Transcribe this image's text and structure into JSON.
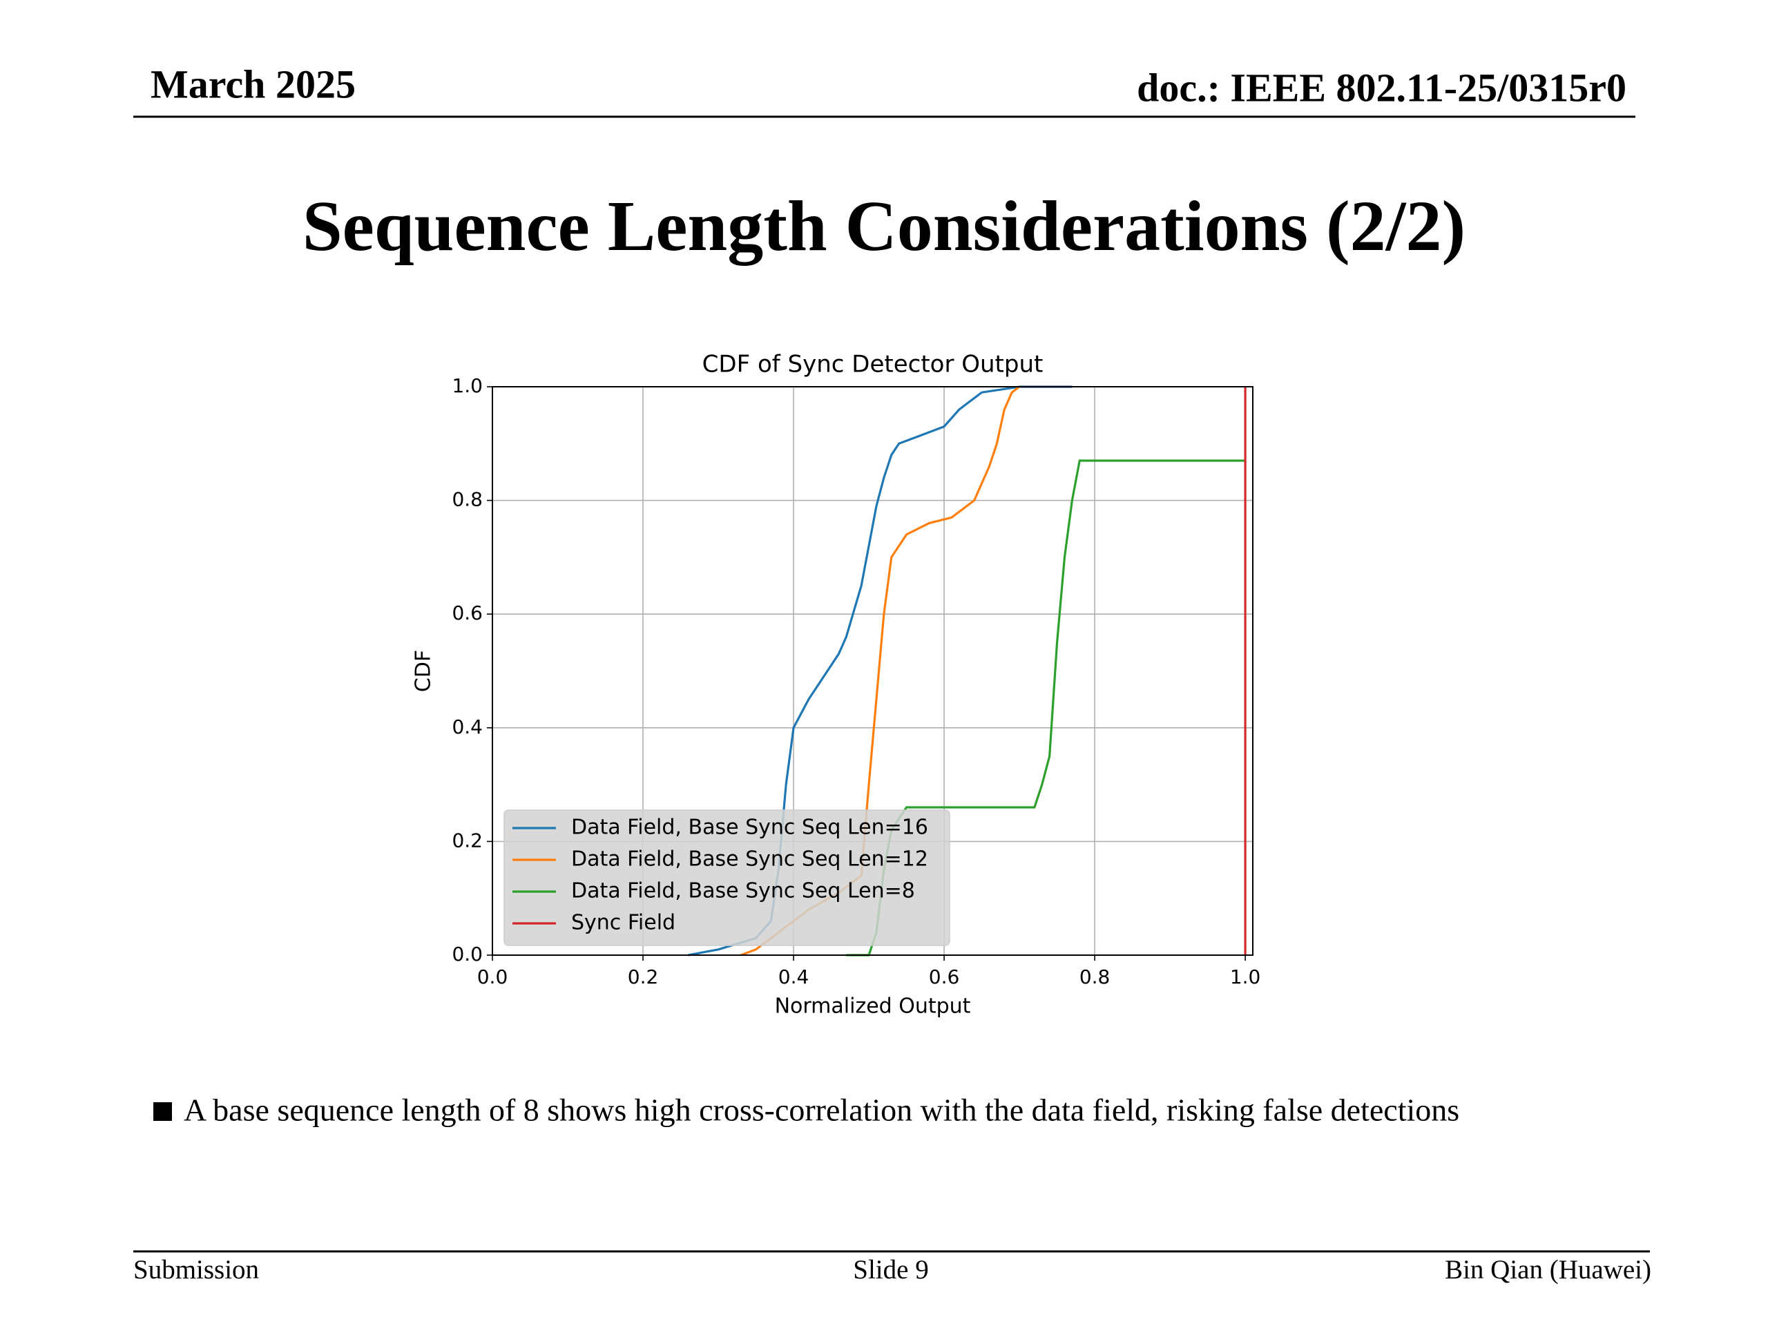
{
  "header": {
    "date": "March 2025",
    "doc": "doc.: IEEE 802.11-25/0315r0"
  },
  "slide_title": "Sequence Length Considerations (2/2)",
  "chart_data": {
    "type": "line",
    "title": "CDF of Sync Detector Output",
    "x_label": "Normalized Output",
    "y_label": "CDF",
    "xlim": [
      0,
      1.01
    ],
    "ylim": [
      0,
      1
    ],
    "xticks": [
      {
        "value": 0,
        "label": "0.0"
      },
      0.2,
      0.4,
      0.6,
      0.8,
      {
        "value": 1,
        "label": "1.0"
      }
    ],
    "yticks": [
      {
        "value": 0,
        "label": "0.0"
      },
      0.2,
      0.4,
      0.6,
      0.8,
      {
        "value": 1,
        "label": "1.0"
      }
    ],
    "grid": true,
    "legend": "lower left",
    "series": [
      {
        "name": "Data Field, Base Sync Seq Len=16",
        "color": "#1f77b4",
        "x": [
          0.26,
          0.3,
          0.35,
          0.37,
          0.38,
          0.39,
          0.4,
          0.42,
          0.44,
          0.46,
          0.47,
          0.49,
          0.5,
          0.51,
          0.52,
          0.53,
          0.54,
          0.56,
          0.58,
          0.6,
          0.62,
          0.65,
          0.7,
          0.77
        ],
        "values": [
          0,
          0.01,
          0.03,
          0.06,
          0.15,
          0.3,
          0.4,
          0.45,
          0.49,
          0.53,
          0.56,
          0.65,
          0.72,
          0.79,
          0.84,
          0.88,
          0.9,
          0.91,
          0.92,
          0.93,
          0.96,
          0.99,
          1.0,
          1.0
        ]
      },
      {
        "name": "Data Field, Base Sync Seq Len=12",
        "color": "#ff7f0e",
        "x": [
          0.33,
          0.35,
          0.38,
          0.42,
          0.46,
          0.49,
          0.5,
          0.51,
          0.52,
          0.53,
          0.55,
          0.58,
          0.61,
          0.64,
          0.66,
          0.67,
          0.68,
          0.69,
          0.7
        ],
        "values": [
          0,
          0.01,
          0.04,
          0.08,
          0.11,
          0.14,
          0.3,
          0.45,
          0.6,
          0.7,
          0.74,
          0.76,
          0.77,
          0.8,
          0.86,
          0.9,
          0.96,
          0.99,
          1.0
        ]
      },
      {
        "name": "Data Field, Base Sync Seq Len=8",
        "color": "#2ca02c",
        "x": [
          0.47,
          0.5,
          0.51,
          0.52,
          0.53,
          0.55,
          0.72,
          0.73,
          0.74,
          0.75,
          0.76,
          0.77,
          0.78,
          1.0
        ],
        "values": [
          0,
          0,
          0.04,
          0.15,
          0.22,
          0.26,
          0.26,
          0.3,
          0.35,
          0.55,
          0.7,
          0.8,
          0.87,
          0.87
        ]
      },
      {
        "name": "Sync Field",
        "color": "#d62728",
        "x": [
          1.0,
          1.0
        ],
        "values": [
          0,
          1
        ]
      }
    ]
  },
  "bullet": "A base sequence length of 8 shows high cross-correlation with the data field, risking false detections",
  "footer": {
    "left": "Submission",
    "center": "Slide 9",
    "right": "Bin Qian (Huawei)"
  }
}
